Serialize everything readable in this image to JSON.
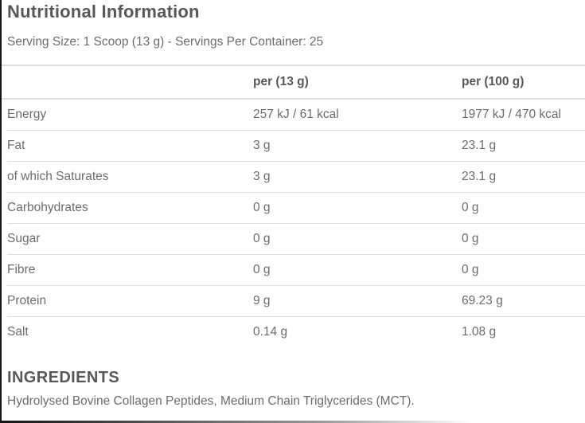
{
  "title": "Nutritional Information",
  "serving_line": "Serving Size: 1 Scoop (13 g) - Servings Per Container: 25",
  "table": {
    "col_per_serving": "per (13 g)",
    "col_per_100g": "per (100 g)",
    "rows": [
      {
        "label": "Energy",
        "per_serving": "257 kJ / 61 kcal",
        "per_100g": "1977 kJ / 470 kcal"
      },
      {
        "label": "Fat",
        "per_serving": "3 g",
        "per_100g": "23.1 g"
      },
      {
        "label": "of which Saturates",
        "per_serving": "3 g",
        "per_100g": "23.1 g"
      },
      {
        "label": "Carbohydrates",
        "per_serving": "0 g",
        "per_100g": "0 g"
      },
      {
        "label": "Sugar",
        "per_serving": "0 g",
        "per_100g": "0 g"
      },
      {
        "label": "Fibre",
        "per_serving": "0 g",
        "per_100g": "0 g"
      },
      {
        "label": "Protein",
        "per_serving": "9 g",
        "per_100g": "69.23 g"
      },
      {
        "label": "Salt",
        "per_serving": "0.14 g",
        "per_100g": "1.08 g"
      }
    ]
  },
  "ingredients": {
    "heading": "INGREDIENTS",
    "text": "Hydrolysed Bovine Collagen Peptides, Medium Chain Triglycerides (MCT)."
  },
  "colors": {
    "heading_color": "#57585a",
    "text_color": "#6c6c6c",
    "rule_color": "#e0e0e0",
    "edge_color": "#141414"
  }
}
